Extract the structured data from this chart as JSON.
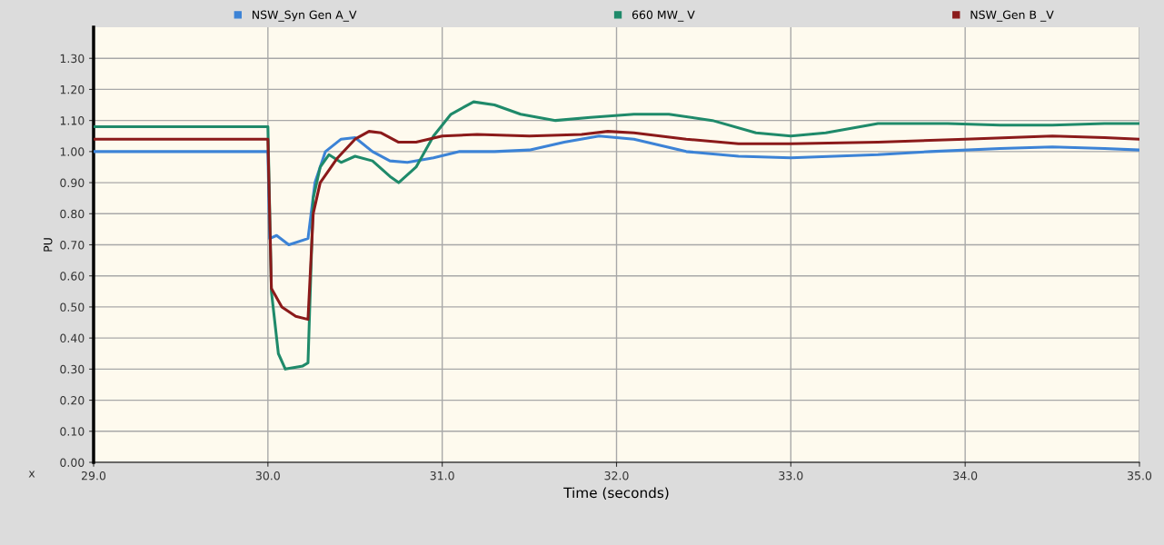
{
  "chart_data": {
    "type": "line",
    "xlabel": "Time (seconds)",
    "ylabel": "PU",
    "annotations": [
      "x"
    ],
    "xlim": [
      29.0,
      35.0
    ],
    "xticks": [
      {
        "value": 29,
        "label": "29.0"
      },
      {
        "value": 30,
        "label": "30.0"
      },
      {
        "value": 31,
        "label": "31.0"
      },
      {
        "value": 32,
        "label": "32.0"
      },
      {
        "value": 33,
        "label": "33.0"
      },
      {
        "value": 34,
        "label": "34.0"
      },
      {
        "value": 35,
        "label": "35.0"
      }
    ],
    "ylim": [
      0,
      1.4
    ],
    "yticks": [
      {
        "value": 0,
        "label": "0.00"
      },
      {
        "value": 0.1,
        "label": "0.10"
      },
      {
        "value": 0.2,
        "label": "0.20"
      },
      {
        "value": 0.3,
        "label": "0.30"
      },
      {
        "value": 0.4,
        "label": "0.40"
      },
      {
        "value": 0.5,
        "label": "0.50"
      },
      {
        "value": 0.6,
        "label": "0.60"
      },
      {
        "value": 0.7,
        "label": "0.70"
      },
      {
        "value": 0.8,
        "label": "0.80"
      },
      {
        "value": 0.9,
        "label": "0.90"
      },
      {
        "value": 1.0,
        "label": "1.00"
      },
      {
        "value": 1.1,
        "label": "1.10"
      },
      {
        "value": 1.2,
        "label": "1.20"
      },
      {
        "value": 1.3,
        "label": "1.30"
      }
    ],
    "grid": true,
    "legend": "top",
    "marker": "none",
    "line_style": "solid",
    "series": [
      {
        "name": "NSW_Syn Gen A_V",
        "color": "#3c83d6",
        "x": [
          29.0,
          30.0,
          30.01,
          30.05,
          30.12,
          30.23,
          30.27,
          30.33,
          30.42,
          30.5,
          30.6,
          30.7,
          30.8,
          30.95,
          31.1,
          31.3,
          31.5,
          31.7,
          31.9,
          32.1,
          32.4,
          32.7,
          33.0,
          33.5,
          33.8,
          34.2,
          34.5,
          34.8,
          35.0
        ],
        "values": [
          1.0,
          1.0,
          0.72,
          0.73,
          0.7,
          0.72,
          0.9,
          1.0,
          1.04,
          1.045,
          1.0,
          0.97,
          0.965,
          0.98,
          1.0,
          1.0,
          1.005,
          1.03,
          1.05,
          1.04,
          1.0,
          0.985,
          0.98,
          0.99,
          1.0,
          1.01,
          1.015,
          1.01,
          1.005
        ]
      },
      {
        "name": "660 MW_ V",
        "color": "#1f8a6a",
        "x": [
          29.0,
          30.0,
          30.02,
          30.06,
          30.1,
          30.2,
          30.23,
          30.26,
          30.3,
          30.35,
          30.42,
          30.5,
          30.6,
          30.7,
          30.75,
          30.85,
          30.95,
          31.05,
          31.18,
          31.3,
          31.45,
          31.65,
          31.85,
          32.1,
          32.3,
          32.55,
          32.8,
          33.0,
          33.2,
          33.5,
          33.9,
          34.2,
          34.5,
          34.8,
          35.0
        ],
        "values": [
          1.08,
          1.08,
          0.55,
          0.35,
          0.3,
          0.31,
          0.32,
          0.85,
          0.95,
          0.99,
          0.965,
          0.985,
          0.97,
          0.92,
          0.9,
          0.95,
          1.05,
          1.12,
          1.16,
          1.15,
          1.12,
          1.1,
          1.11,
          1.12,
          1.12,
          1.1,
          1.06,
          1.05,
          1.06,
          1.09,
          1.09,
          1.085,
          1.085,
          1.09,
          1.09
        ]
      },
      {
        "name": "NSW_Gen B _V",
        "color": "#8b1a1a",
        "x": [
          29.0,
          30.0,
          30.02,
          30.08,
          30.16,
          30.23,
          30.26,
          30.3,
          30.4,
          30.5,
          30.58,
          30.65,
          30.75,
          30.85,
          31.0,
          31.2,
          31.5,
          31.8,
          31.95,
          32.1,
          32.4,
          32.7,
          33.0,
          33.5,
          34.0,
          34.5,
          34.8,
          35.0
        ],
        "values": [
          1.04,
          1.04,
          0.56,
          0.5,
          0.47,
          0.46,
          0.8,
          0.9,
          0.98,
          1.04,
          1.065,
          1.06,
          1.03,
          1.03,
          1.05,
          1.055,
          1.05,
          1.055,
          1.065,
          1.06,
          1.04,
          1.025,
          1.025,
          1.03,
          1.04,
          1.05,
          1.045,
          1.04
        ]
      }
    ]
  }
}
